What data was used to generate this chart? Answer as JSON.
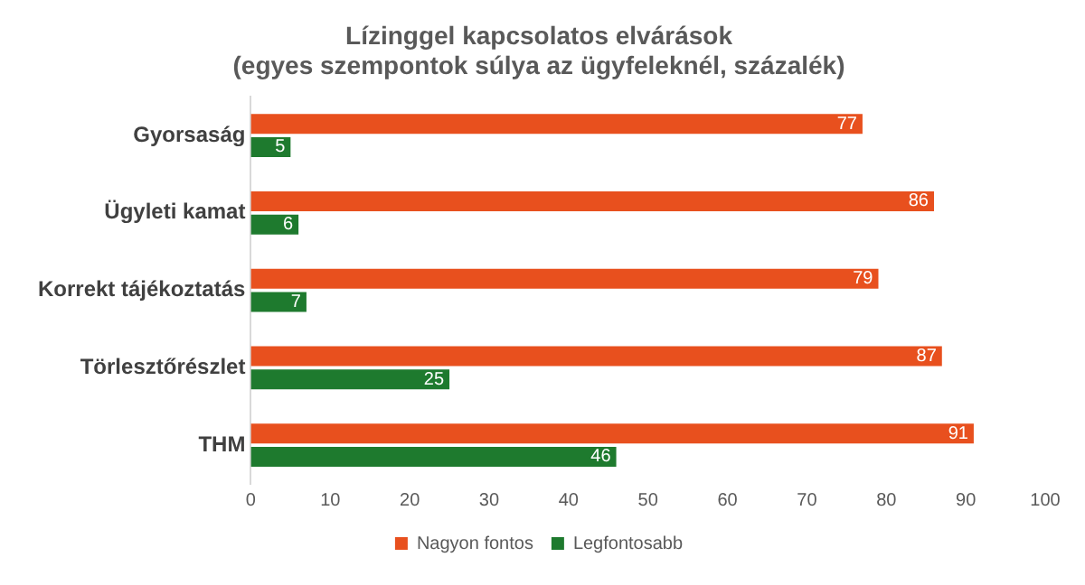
{
  "chart_data": {
    "type": "bar",
    "orientation": "horizontal",
    "title": "Lízinggel kapcsolatos elvárások",
    "subtitle": "(egyes szempontok súlya az ügyfeleknél, százalék)",
    "categories": [
      "Gyorsaság",
      "Ügyleti kamat",
      "Korrekt tájékoztatás",
      "Törlesztőrészlet",
      "THM"
    ],
    "series": [
      {
        "name": "Nagyon fontos",
        "color": "#e8501e",
        "values": [
          77,
          86,
          79,
          87,
          91
        ]
      },
      {
        "name": "Legfontosabb",
        "color": "#1e7a2e",
        "values": [
          5,
          6,
          7,
          25,
          46
        ]
      }
    ],
    "xlim": [
      0,
      100
    ],
    "xticks": [
      0,
      10,
      20,
      30,
      40,
      50,
      60,
      70,
      80,
      90,
      100
    ],
    "grid": false,
    "legend": "bottom",
    "data_labels": true
  }
}
